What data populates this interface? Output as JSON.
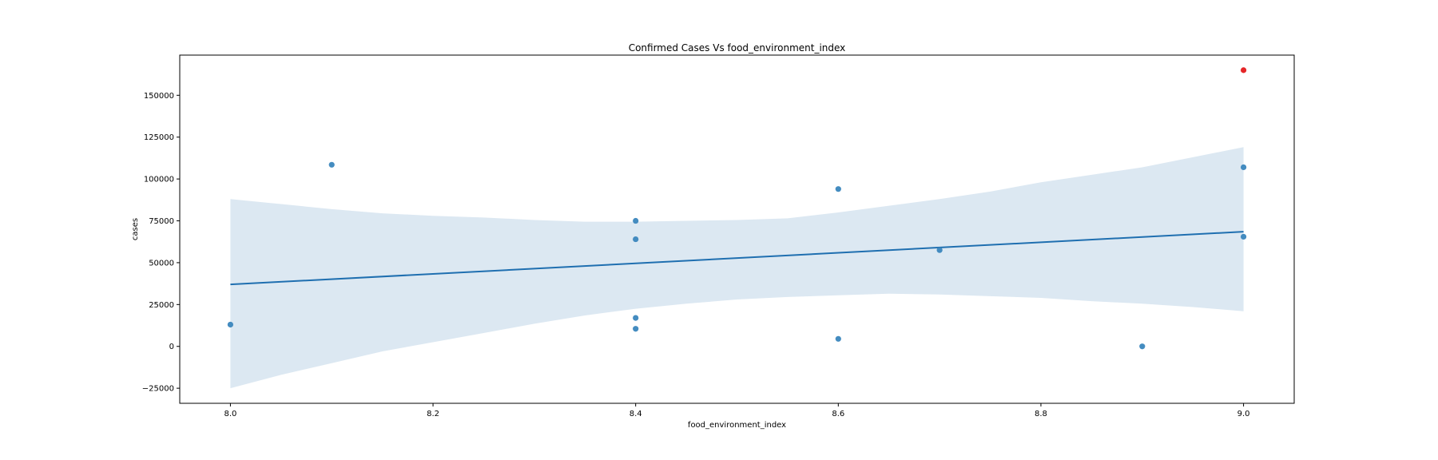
{
  "chart_data": {
    "type": "scatter",
    "title": "Confirmed Cases Vs food_environment_index",
    "xlabel": "food_environment_index",
    "ylabel": "cases",
    "xlim": [
      7.95,
      9.05
    ],
    "ylim": [
      -34000,
      174000
    ],
    "x_ticks": [
      8.0,
      8.2,
      8.4,
      8.6,
      8.8,
      9.0
    ],
    "x_tick_labels": [
      "8.0",
      "8.2",
      "8.4",
      "8.6",
      "8.8",
      "9.0"
    ],
    "y_ticks": [
      -25000,
      0,
      25000,
      50000,
      75000,
      100000,
      125000,
      150000
    ],
    "y_tick_labels": [
      "−25000",
      "0",
      "25000",
      "50000",
      "75000",
      "100000",
      "125000",
      "150000"
    ],
    "grid": false,
    "colors": {
      "points": "#3a86bd",
      "regression_line": "#1f6fb0",
      "confidence_band": "#dce8f2",
      "highlight": "#e41a1c"
    },
    "series": [
      {
        "type": "scatter",
        "points": [
          {
            "x": 8.0,
            "y": 13000
          },
          {
            "x": 8.1,
            "y": 108500
          },
          {
            "x": 8.4,
            "y": 75000
          },
          {
            "x": 8.4,
            "y": 64000
          },
          {
            "x": 8.4,
            "y": 17000
          },
          {
            "x": 8.4,
            "y": 10500
          },
          {
            "x": 8.6,
            "y": 94000
          },
          {
            "x": 8.6,
            "y": 4500
          },
          {
            "x": 8.7,
            "y": 57500
          },
          {
            "x": 8.9,
            "y": 0
          },
          {
            "x": 9.0,
            "y": 107000
          },
          {
            "x": 9.0,
            "y": 65500
          }
        ]
      },
      {
        "type": "scatter-highlight",
        "points": [
          {
            "x": 9.0,
            "y": 165000
          }
        ]
      }
    ],
    "regression": {
      "start": {
        "x": 8.0,
        "y": 37000
      },
      "end": {
        "x": 9.0,
        "y": 68500
      }
    },
    "confidence_band": {
      "x": [
        8.0,
        8.05,
        8.1,
        8.15,
        8.2,
        8.25,
        8.3,
        8.35,
        8.4,
        8.45,
        8.5,
        8.55,
        8.6,
        8.65,
        8.7,
        8.75,
        8.8,
        8.85,
        8.9,
        8.95,
        9.0
      ],
      "upper": [
        88000,
        85000,
        82000,
        79500,
        78000,
        77000,
        75500,
        74500,
        74500,
        75000,
        75500,
        76500,
        80000,
        84000,
        88000,
        92500,
        98000,
        102500,
        107000,
        113000,
        119000
      ],
      "lower": [
        -25000,
        -17000,
        -10000,
        -3000,
        2500,
        8000,
        13500,
        18500,
        22500,
        25500,
        28000,
        29500,
        30500,
        31500,
        31000,
        30000,
        29000,
        27000,
        25500,
        23500,
        21000
      ]
    }
  }
}
